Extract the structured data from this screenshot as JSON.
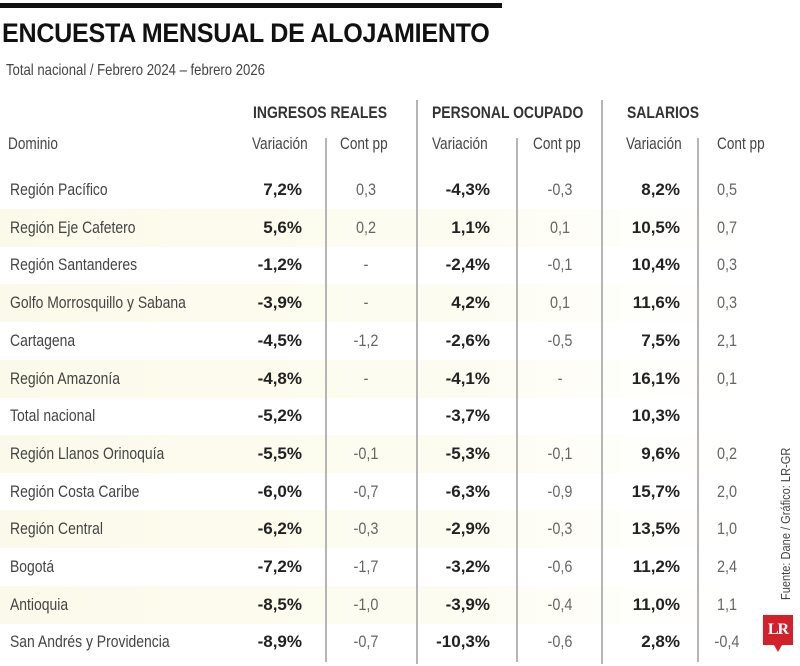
{
  "header": {
    "title": "ENCUESTA MENSUAL DE ALOJAMIENTO",
    "subtitle": "Total nacional / Febrero 2024 – febrero 2026"
  },
  "columns": {
    "domain": "Dominio",
    "groups": [
      {
        "label": "INGRESOS REALES",
        "sub": [
          "Variación",
          "Cont pp"
        ]
      },
      {
        "label": "PERSONAL OCUPADO",
        "sub": [
          "Variación",
          "Cont pp"
        ]
      },
      {
        "label": "SALARIOS",
        "sub": [
          "Variación",
          "Cont pp"
        ]
      }
    ]
  },
  "rows": [
    {
      "name": "Región Pacífico",
      "ing_var": "7,2%",
      "ing_pp": "0,3",
      "per_var": "-4,3%",
      "per_pp": "-0,3",
      "sal_var": "8,2%",
      "sal_pp": "0,5"
    },
    {
      "name": "Región Eje Cafetero",
      "ing_var": "5,6%",
      "ing_pp": "0,2",
      "per_var": "1,1%",
      "per_pp": "0,1",
      "sal_var": "10,5%",
      "sal_pp": "0,7"
    },
    {
      "name": "Región Santanderes",
      "ing_var": "-1,2%",
      "ing_pp": "-",
      "per_var": "-2,4%",
      "per_pp": "-0,1",
      "sal_var": "10,4%",
      "sal_pp": "0,3"
    },
    {
      "name": "Golfo Morrosquillo y Sabana",
      "ing_var": "-3,9%",
      "ing_pp": "-",
      "per_var": "4,2%",
      "per_pp": "0,1",
      "sal_var": "11,6%",
      "sal_pp": "0,3"
    },
    {
      "name": "Cartagena",
      "ing_var": "-4,5%",
      "ing_pp": "-1,2",
      "per_var": "-2,6%",
      "per_pp": "-0,5",
      "sal_var": "7,5%",
      "sal_pp": "2,1"
    },
    {
      "name": "Región Amazonía",
      "ing_var": "-4,8%",
      "ing_pp": "-",
      "per_var": "-4,1%",
      "per_pp": "-",
      "sal_var": "16,1%",
      "sal_pp": "0,1"
    },
    {
      "name": "Total nacional",
      "ing_var": "-5,2%",
      "ing_pp": "",
      "per_var": "-3,7%",
      "per_pp": "",
      "sal_var": "10,3%",
      "sal_pp": ""
    },
    {
      "name": "Región Llanos Orinoquía",
      "ing_var": "-5,5%",
      "ing_pp": "-0,1",
      "per_var": "-5,3%",
      "per_pp": "-0,1",
      "sal_var": "9,6%",
      "sal_pp": "0,2"
    },
    {
      "name": "Región Costa Caribe",
      "ing_var": "-6,0%",
      "ing_pp": "-0,7",
      "per_var": "-6,3%",
      "per_pp": "-0,9",
      "sal_var": "15,7%",
      "sal_pp": "2,0"
    },
    {
      "name": "Región Central",
      "ing_var": "-6,2%",
      "ing_pp": "-0,3",
      "per_var": "-2,9%",
      "per_pp": "-0,3",
      "sal_var": "13,5%",
      "sal_pp": "1,0"
    },
    {
      "name": "Bogotá",
      "ing_var": "-7,2%",
      "ing_pp": "-1,7",
      "per_var": "-3,2%",
      "per_pp": "-0,6",
      "sal_var": "11,2%",
      "sal_pp": "2,4"
    },
    {
      "name": "Antioquia",
      "ing_var": "-8,5%",
      "ing_pp": "-1,0",
      "per_var": "-3,9%",
      "per_pp": "-0,4",
      "sal_var": "11,0%",
      "sal_pp": "1,1"
    },
    {
      "name": "San Andrés y Providencia",
      "ing_var": "-8,9%",
      "ing_pp": "-0,7",
      "per_var": "-10,3%",
      "per_pp": "-0,6",
      "sal_var": "2,8%",
      "sal_pp": "-0,4"
    }
  ],
  "footer": {
    "source": "Fuente: Dane / Gráfico: LR-GR",
    "logo": "LR"
  },
  "colors": {
    "shade": "#fbfaea",
    "logo": "#d3202a",
    "divider": "#b5b5b5"
  },
  "chart_data": {
    "type": "table",
    "title": "ENCUESTA MENSUAL DE ALOJAMIENTO",
    "subtitle": "Total nacional / Febrero 2024 – febrero 2026",
    "columns": [
      "Dominio",
      "Ingresos reales - Variación (%)",
      "Ingresos reales - Cont pp",
      "Personal ocupado - Variación (%)",
      "Personal ocupado - Cont pp",
      "Salarios - Variación (%)",
      "Salarios - Cont pp"
    ],
    "rows": [
      [
        "Región Pacífico",
        7.2,
        0.3,
        -4.3,
        -0.3,
        8.2,
        0.5
      ],
      [
        "Región Eje Cafetero",
        5.6,
        0.2,
        1.1,
        0.1,
        10.5,
        0.7
      ],
      [
        "Región Santanderes",
        -1.2,
        null,
        -2.4,
        -0.1,
        10.4,
        0.3
      ],
      [
        "Golfo Morrosquillo y Sabana",
        -3.9,
        null,
        4.2,
        0.1,
        11.6,
        0.3
      ],
      [
        "Cartagena",
        -4.5,
        -1.2,
        -2.6,
        -0.5,
        7.5,
        2.1
      ],
      [
        "Región Amazonía",
        -4.8,
        null,
        -4.1,
        null,
        16.1,
        0.1
      ],
      [
        "Total nacional",
        -5.2,
        null,
        -3.7,
        null,
        10.3,
        null
      ],
      [
        "Región Llanos Orinoquía",
        -5.5,
        -0.1,
        -5.3,
        -0.1,
        9.6,
        0.2
      ],
      [
        "Región Costa Caribe",
        -6.0,
        -0.7,
        -6.3,
        -0.9,
        15.7,
        2.0
      ],
      [
        "Región Central",
        -6.2,
        -0.3,
        -2.9,
        -0.3,
        13.5,
        1.0
      ],
      [
        "Bogotá",
        -7.2,
        -1.7,
        -3.2,
        -0.6,
        11.2,
        2.4
      ],
      [
        "Antioquia",
        -8.5,
        -1.0,
        -3.9,
        -0.4,
        11.0,
        1.1
      ],
      [
        "San Andrés y Providencia",
        -8.9,
        -0.7,
        -10.3,
        -0.6,
        2.8,
        -0.4
      ]
    ],
    "source": "Fuente: Dane / Gráfico: LR-GR"
  }
}
